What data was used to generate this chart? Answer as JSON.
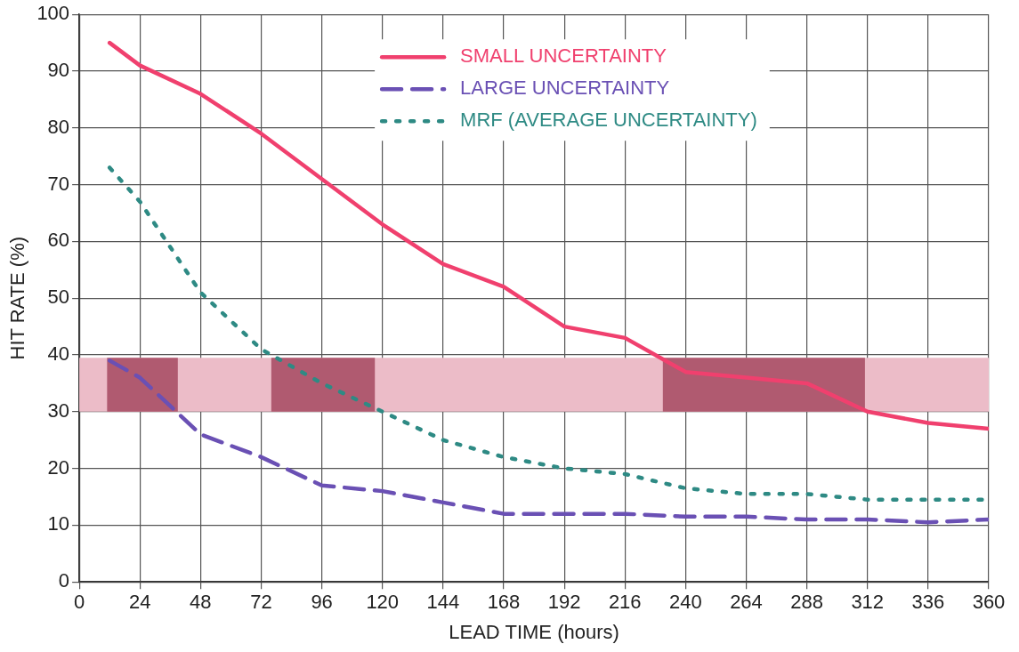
{
  "chart_data": {
    "type": "line",
    "xlabel": "LEAD TIME (hours)",
    "ylabel": "HIT RATE (%)",
    "x": [
      12,
      24,
      36,
      48,
      72,
      96,
      120,
      144,
      168,
      192,
      216,
      240,
      264,
      288,
      312,
      336,
      360
    ],
    "series": [
      {
        "name": "SMALL UNCERTAINTY",
        "color": "#f0406e",
        "line_style": "solid",
        "values": [
          95,
          91,
          null,
          86,
          79,
          71,
          63,
          56,
          52,
          45,
          43,
          37,
          36,
          35,
          30,
          28,
          27
        ]
      },
      {
        "name": "LARGE UNCERTAINTY",
        "color": "#6a50b4",
        "line_style": "dashed",
        "values": [
          39,
          36,
          31,
          26,
          22,
          17,
          16,
          14,
          12,
          12,
          12,
          11.5,
          11.5,
          11,
          11,
          10.5,
          11
        ]
      },
      {
        "name": "MRF (AVERAGE UNCERTAINTY)",
        "color": "#2e8a84",
        "line_style": "dotted",
        "values": [
          73,
          67,
          null,
          51,
          41,
          35,
          30,
          25,
          22,
          20,
          19,
          16.5,
          15.5,
          15.5,
          14.5,
          14.5,
          14.5
        ]
      }
    ],
    "xlim": [
      0,
      360
    ],
    "xticks": [
      0,
      24,
      48,
      72,
      96,
      120,
      144,
      168,
      192,
      216,
      240,
      264,
      288,
      312,
      336,
      360
    ],
    "ylim": [
      0,
      100
    ],
    "yticks": [
      0,
      10,
      20,
      30,
      40,
      50,
      60,
      70,
      80,
      90,
      100
    ],
    "bands": [
      {
        "axis": "y",
        "from": 30,
        "to": 39.5,
        "color": "#ecbcc8"
      },
      {
        "axis": "x",
        "from": 11,
        "to": 39,
        "color": "#b05a70"
      },
      {
        "axis": "x",
        "from": 76,
        "to": 117,
        "color": "#b05a70"
      },
      {
        "axis": "x",
        "from": 231,
        "to": 311,
        "color": "#b05a70"
      }
    ],
    "grid": true,
    "legend": "top right",
    "marker": "none"
  }
}
